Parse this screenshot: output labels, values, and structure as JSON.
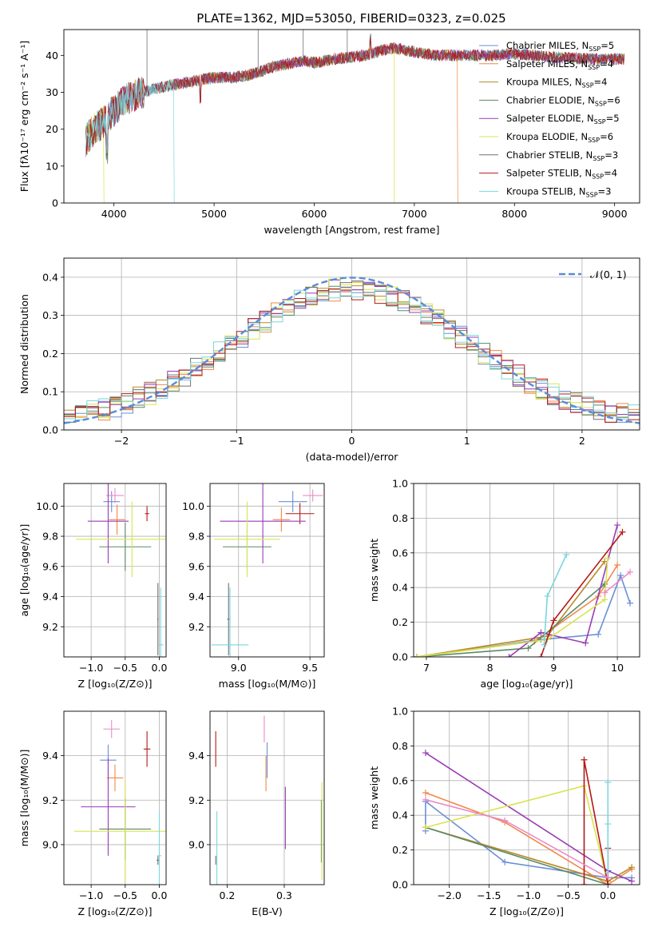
{
  "figure_title": "PLATE=1362, MJD=53050, FIBERID=0323, z=0.025",
  "colors": {
    "Chabrier MILES": "#6a8fd8",
    "Salpeter MILES": "#f08848",
    "Kroupa MILES": "#b88a28",
    "Chabrier ELODIE": "#5a8a68",
    "Salpeter ELODIE": "#9a3cb4",
    "Kroupa ELODIE": "#d8e450",
    "Chabrier STELIB": "#707070",
    "Salpeter STELIB": "#b41818",
    "Kroupa STELIB": "#7ad6de",
    "Pink": "#ee88c8",
    "Normal": "#5b8bd8"
  },
  "chart_data": [
    {
      "id": "spectrum",
      "type": "line",
      "title": "PLATE=1362, MJD=53050, FIBERID=0323, z=0.025",
      "xlabel": "wavelength [Angstrom, rest frame]",
      "ylabel": "Flux [fλ10⁻¹⁷ erg cm⁻² s⁻¹ A⁻¹]",
      "xlim": [
        3500,
        9250
      ],
      "ylim": [
        0,
        47
      ],
      "xticks": [
        4000,
        5000,
        6000,
        7000,
        8000,
        9000
      ],
      "yticks": [
        0,
        10,
        20,
        30,
        40
      ],
      "grid": false,
      "legend_position": "top-right",
      "continuum": [
        [
          3720,
          17
        ],
        [
          3800,
          20
        ],
        [
          3900,
          22
        ],
        [
          4000,
          25
        ],
        [
          4100,
          28
        ],
        [
          4200,
          29
        ],
        [
          4400,
          31
        ],
        [
          4600,
          32
        ],
        [
          4800,
          33
        ],
        [
          5000,
          34
        ],
        [
          5200,
          34
        ],
        [
          5400,
          35
        ],
        [
          5600,
          37
        ],
        [
          5800,
          38
        ],
        [
          5900,
          38.5
        ],
        [
          6000,
          38
        ],
        [
          6200,
          39
        ],
        [
          6500,
          40
        ],
        [
          6700,
          41.5
        ],
        [
          6800,
          42
        ],
        [
          7000,
          41
        ],
        [
          7200,
          40
        ],
        [
          7500,
          40
        ],
        [
          7800,
          40
        ],
        [
          8000,
          40.5
        ],
        [
          8400,
          39.5
        ],
        [
          8800,
          39
        ],
        [
          9100,
          39
        ]
      ],
      "series": [
        {
          "name": "Chabrier MILES",
          "label": "Chabrier MILES, N",
          "nssp": "=5",
          "color_key": "Chabrier MILES"
        },
        {
          "name": "Salpeter MILES",
          "label": "Salpeter MILES, N",
          "nssp": "=4",
          "color_key": "Salpeter MILES",
          "drop_at": 7430
        },
        {
          "name": "Kroupa MILES",
          "label": "Kroupa MILES, N",
          "nssp": "=4",
          "color_key": "Kroupa MILES"
        },
        {
          "name": "Chabrier ELODIE",
          "label": "Chabrier ELODIE, N",
          "nssp": "=6",
          "color_key": "Chabrier ELODIE"
        },
        {
          "name": "Salpeter ELODIE",
          "label": "Salpeter ELODIE, N",
          "nssp": "=5",
          "color_key": "Salpeter ELODIE"
        },
        {
          "name": "Kroupa ELODIE",
          "label": "Kroupa ELODIE, N",
          "nssp": "=6",
          "color_key": "Kroupa ELODIE",
          "drop_at": 3900
        },
        {
          "name": "Chabrier STELIB",
          "label": "Chabrier STELIB, N",
          "nssp": "=3",
          "color_key": "Chabrier STELIB"
        },
        {
          "name": "Salpeter STELIB",
          "label": "Salpeter STELIB, N",
          "nssp": "=4",
          "color_key": "Salpeter STELIB"
        },
        {
          "name": "Kroupa STELIB",
          "label": "Kroupa STELIB, N",
          "nssp": "=3",
          "color_key": "Kroupa STELIB",
          "drop_at": 4600
        }
      ],
      "spikes": [
        {
          "x": 4330,
          "y": 47
        },
        {
          "x": 5440,
          "y": 47
        },
        {
          "x": 5890,
          "y": 47
        },
        {
          "x": 6330,
          "y": 47
        },
        {
          "x": 6800,
          "y": 0
        }
      ]
    },
    {
      "id": "residuals",
      "type": "histogram",
      "xlabel": "(data-model)/error",
      "ylabel": "Normed distribution",
      "xlim": [
        -2.5,
        2.5
      ],
      "ylim": [
        0,
        0.45
      ],
      "xticks": [
        -2,
        -1,
        0,
        1,
        2
      ],
      "yticks": [
        0.0,
        0.1,
        0.2,
        0.3,
        0.4
      ],
      "grid": true,
      "legend_position": "top-right",
      "normal_label": "𝒩(0, 1)",
      "bin_width": 0.1,
      "series_keys": [
        "Chabrier MILES",
        "Salpeter MILES",
        "Kroupa MILES",
        "Chabrier ELODIE",
        "Salpeter ELODIE",
        "Kroupa ELODIE",
        "Chabrier STELIB",
        "Salpeter STELIB",
        "Kroupa STELIB"
      ]
    },
    {
      "id": "age_vs_Z",
      "type": "scatter-errorbar",
      "xlabel": "Z [log₁₀(Z/Z⊙)]",
      "ylabel": "age  [log₁₀(age/yr)]",
      "xlim": [
        -1.4,
        0.1
      ],
      "ylim": [
        9.0,
        10.15
      ],
      "xticks": [
        -1.0,
        -0.5,
        0.0
      ],
      "yticks": [
        9.2,
        9.4,
        9.6,
        9.8,
        10.0
      ],
      "grid": true,
      "points": [
        {
          "color_key": "Chabrier MILES",
          "x": -0.7,
          "xerr": 0.12,
          "y": 10.03,
          "yerr": 0.07
        },
        {
          "color_key": "Salpeter MILES",
          "x": -0.62,
          "xerr": 0.12,
          "y": 9.91,
          "yerr": 0.1
        },
        {
          "color_key": "Pink",
          "x": -0.65,
          "xerr": 0.13,
          "y": 10.07,
          "yerr": 0.05
        },
        {
          "color_key": "Chabrier ELODIE",
          "x": -0.5,
          "xerr": 0.38,
          "y": 9.73,
          "yerr": 0.16
        },
        {
          "color_key": "Salpeter ELODIE",
          "x": -0.75,
          "xerr": 0.3,
          "y": 9.9,
          "yerr": 0.28
        },
        {
          "color_key": "Kroupa ELODIE",
          "x": -0.4,
          "xerr": 0.82,
          "y": 9.78,
          "yerr": 0.25
        },
        {
          "color_key": "Salpeter STELIB",
          "x": -0.18,
          "xerr": 0.03,
          "y": 9.95,
          "yerr": 0.05
        },
        {
          "color_key": "Chabrier STELIB",
          "x": -0.02,
          "xerr": 0.01,
          "y": 9.25,
          "yerr": 0.24
        },
        {
          "color_key": "Kroupa STELIB",
          "x": 0.02,
          "xerr": 0.04,
          "y": 9.08,
          "yerr": 0.38
        }
      ]
    },
    {
      "id": "age_vs_mass",
      "type": "scatter-errorbar",
      "xlabel": "mass [log₁₀(M/M⊙)]",
      "xlim": [
        8.8,
        9.6
      ],
      "ylim": [
        9.0,
        10.15
      ],
      "xticks": [
        9.0,
        9.5
      ],
      "yticks": [
        9.2,
        9.4,
        9.6,
        9.8,
        10.0
      ],
      "grid": true,
      "points": [
        {
          "color_key": "Chabrier MILES",
          "x": 9.38,
          "xerr": 0.1,
          "y": 10.03,
          "yerr": 0.07
        },
        {
          "color_key": "Salpeter MILES",
          "x": 9.3,
          "xerr": 0.06,
          "y": 9.91,
          "yerr": 0.08
        },
        {
          "color_key": "Pink",
          "x": 9.52,
          "xerr": 0.07,
          "y": 10.07,
          "yerr": 0.04
        },
        {
          "color_key": "Salpeter STELIB",
          "x": 9.43,
          "xerr": 0.1,
          "y": 9.95,
          "yerr": 0.07
        },
        {
          "color_key": "Chabrier ELODIE",
          "x": 9.06,
          "xerr": 0.17,
          "y": 9.73,
          "yerr": 0.15
        },
        {
          "color_key": "Salpeter ELODIE",
          "x": 9.17,
          "xerr": 0.3,
          "y": 9.9,
          "yerr": 0.28
        },
        {
          "color_key": "Kroupa ELODIE",
          "x": 9.06,
          "xerr": 0.23,
          "y": 9.78,
          "yerr": 0.25
        },
        {
          "color_key": "Chabrier STELIB",
          "x": 8.93,
          "xerr": 0.01,
          "y": 9.25,
          "yerr": 0.24
        },
        {
          "color_key": "Kroupa STELIB",
          "x": 8.94,
          "xerr": 0.13,
          "y": 9.08,
          "yerr": 0.38
        }
      ]
    },
    {
      "id": "weights_vs_age",
      "type": "line",
      "xlabel": "age  [log₁₀(age/yr)]",
      "ylabel": "mass weight",
      "xlim": [
        6.8,
        10.35
      ],
      "ylim": [
        0,
        1.0
      ],
      "xticks": [
        7,
        8,
        9,
        10
      ],
      "yticks": [
        0.0,
        0.2,
        0.4,
        0.6,
        0.8,
        1.0
      ],
      "grid": true,
      "series": [
        {
          "color_key": "Chabrier MILES",
          "x": [
            6.85,
            8.8,
            9.7,
            10.05,
            10.2
          ],
          "y": [
            0.0,
            0.1,
            0.13,
            0.47,
            0.31
          ]
        },
        {
          "color_key": "Salpeter MILES",
          "x": [
            6.85,
            8.7,
            9.7,
            10.0
          ],
          "y": [
            0.0,
            0.09,
            0.35,
            0.53
          ]
        },
        {
          "color_key": "Kroupa MILES",
          "x": [
            6.85,
            8.9,
            9.8
          ],
          "y": [
            0.0,
            0.12,
            0.55
          ]
        },
        {
          "color_key": "Chabrier ELODIE",
          "x": [
            6.85,
            8.6,
            9.8
          ],
          "y": [
            0.0,
            0.05,
            0.42
          ]
        },
        {
          "color_key": "Salpeter ELODIE",
          "x": [
            8.3,
            8.8,
            9.5,
            10.0
          ],
          "y": [
            0.0,
            0.14,
            0.08,
            0.76
          ]
        },
        {
          "color_key": "Kroupa ELODIE",
          "x": [
            6.85,
            8.9,
            9.8,
            9.85
          ],
          "y": [
            0.0,
            0.1,
            0.33,
            0.57
          ]
        },
        {
          "color_key": "Salpeter STELIB",
          "x": [
            8.8,
            9.0,
            10.08
          ],
          "y": [
            0.0,
            0.21,
            0.72
          ]
        },
        {
          "color_key": "Kroupa STELIB",
          "x": [
            8.85,
            8.9,
            9.2
          ],
          "y": [
            0.07,
            0.35,
            0.59
          ]
        },
        {
          "color_key": "Pink",
          "x": [
            9.8,
            10.2
          ],
          "y": [
            0.37,
            0.49
          ]
        }
      ]
    },
    {
      "id": "mass_vs_Z",
      "type": "scatter-errorbar",
      "xlabel": "Z [log₁₀(Z/Z⊙)]",
      "ylabel": "mass [log₁₀(M/M⊙)]",
      "xlim": [
        -1.4,
        0.1
      ],
      "ylim": [
        8.82,
        9.6
      ],
      "xticks": [
        -1.0,
        -0.5,
        0.0
      ],
      "yticks": [
        9.0,
        9.2,
        9.4
      ],
      "grid": true,
      "points": [
        {
          "color_key": "Pink",
          "x": -0.7,
          "xerr": 0.12,
          "y": 9.52,
          "yerr": 0.04
        },
        {
          "color_key": "Chabrier MILES",
          "x": -0.75,
          "xerr": 0.12,
          "y": 9.38,
          "yerr": 0.07
        },
        {
          "color_key": "Salpeter MILES",
          "x": -0.65,
          "xerr": 0.12,
          "y": 9.3,
          "yerr": 0.06
        },
        {
          "color_key": "Salpeter STELIB",
          "x": -0.18,
          "xerr": 0.05,
          "y": 9.43,
          "yerr": 0.08
        },
        {
          "color_key": "Salpeter ELODIE",
          "x": -0.75,
          "xerr": 0.4,
          "y": 9.17,
          "yerr": 0.22
        },
        {
          "color_key": "Chabrier ELODIE",
          "x": -0.5,
          "xerr": 0.38,
          "y": 9.07,
          "yerr": 0.14
        },
        {
          "color_key": "Kroupa ELODIE",
          "x": -0.5,
          "xerr": 0.75,
          "y": 9.06,
          "yerr": 0.23
        },
        {
          "color_key": "Chabrier STELIB",
          "x": -0.02,
          "xerr": 0.02,
          "y": 8.93,
          "yerr": 0.02
        },
        {
          "color_key": "Kroupa STELIB",
          "x": 0.0,
          "xerr": 0.03,
          "y": 8.95,
          "yerr": 0.2
        }
      ]
    },
    {
      "id": "mass_vs_EBV",
      "type": "scatter-errorbar",
      "xlabel": "E(B-V)",
      "xlim": [
        0.17,
        0.37
      ],
      "ylim": [
        8.82,
        9.6
      ],
      "xticks": [
        0.2,
        0.3
      ],
      "yticks": [
        9.0,
        9.2,
        9.4
      ],
      "grid": true,
      "points": [
        {
          "color_key": "Salpeter STELIB",
          "x": 0.18,
          "xerr": 0.0,
          "y": 9.43,
          "yerr": 0.08
        },
        {
          "color_key": "Chabrier STELIB",
          "x": 0.18,
          "xerr": 0.0,
          "y": 8.93,
          "yerr": 0.02
        },
        {
          "color_key": "Kroupa STELIB",
          "x": 0.182,
          "xerr": 0.0,
          "y": 8.95,
          "yerr": 0.2
        },
        {
          "color_key": "Pink",
          "x": 0.265,
          "xerr": 0.0,
          "y": 9.52,
          "yerr": 0.06
        },
        {
          "color_key": "Chabrier MILES",
          "x": 0.27,
          "xerr": 0.0,
          "y": 9.38,
          "yerr": 0.08
        },
        {
          "color_key": "Salpeter MILES",
          "x": 0.268,
          "xerr": 0.0,
          "y": 9.32,
          "yerr": 0.08
        },
        {
          "color_key": "Salpeter ELODIE",
          "x": 0.302,
          "xerr": 0.0,
          "y": 9.12,
          "yerr": 0.14
        },
        {
          "color_key": "Chabrier ELODIE",
          "x": 0.365,
          "xerr": 0.0,
          "y": 9.06,
          "yerr": 0.14
        },
        {
          "color_key": "Kroupa ELODIE",
          "x": 0.366,
          "xerr": 0.0,
          "y": 9.06,
          "yerr": 0.22
        }
      ]
    },
    {
      "id": "weights_vs_Z",
      "type": "line",
      "xlabel": "Z [log₁₀(Z/Z⊙)]",
      "ylabel": "mass weight",
      "xlim": [
        -2.45,
        0.4
      ],
      "ylim": [
        0,
        1.0
      ],
      "xticks": [
        -2.0,
        -1.5,
        -1.0,
        -0.5,
        0.0
      ],
      "yticks": [
        0.0,
        0.2,
        0.4,
        0.6,
        0.8,
        1.0
      ],
      "grid": true,
      "series": [
        {
          "color_key": "Chabrier MILES",
          "x": [
            -2.3,
            -2.3,
            -1.3,
            0.0,
            0.3
          ],
          "y": [
            0.31,
            0.48,
            0.13,
            0.04,
            0.04
          ]
        },
        {
          "color_key": "Salpeter MILES",
          "x": [
            -2.3,
            -1.3,
            0.0,
            0.3
          ],
          "y": [
            0.53,
            0.36,
            0.0,
            0.09
          ]
        },
        {
          "color_key": "Kroupa MILES",
          "x": [
            -2.3,
            0.0,
            0.3
          ],
          "y": [
            0.33,
            0.02,
            0.1
          ]
        },
        {
          "color_key": "Chabrier ELODIE",
          "x": [
            -2.3,
            0.0
          ],
          "y": [
            0.33,
            0.0
          ]
        },
        {
          "color_key": "Salpeter ELODIE",
          "x": [
            -2.3,
            0.0,
            0.3
          ],
          "y": [
            0.76,
            0.08,
            0.02
          ]
        },
        {
          "color_key": "Kroupa ELODIE",
          "x": [
            -2.3,
            -0.3,
            0.0
          ],
          "y": [
            0.33,
            0.57,
            0.0
          ]
        },
        {
          "color_key": "Salpeter STELIB",
          "x": [
            -0.3,
            -0.3,
            0.0,
            0.0
          ],
          "y": [
            0.0,
            0.72,
            0.0,
            0.21
          ]
        },
        {
          "color_key": "Kroupa STELIB",
          "x": [
            0.0,
            0.0,
            0.0
          ],
          "y": [
            0.07,
            0.35,
            0.59
          ]
        },
        {
          "color_key": "Pink",
          "x": [
            -2.3,
            -1.3,
            0.0
          ],
          "y": [
            0.49,
            0.37,
            0.04
          ]
        }
      ]
    }
  ]
}
